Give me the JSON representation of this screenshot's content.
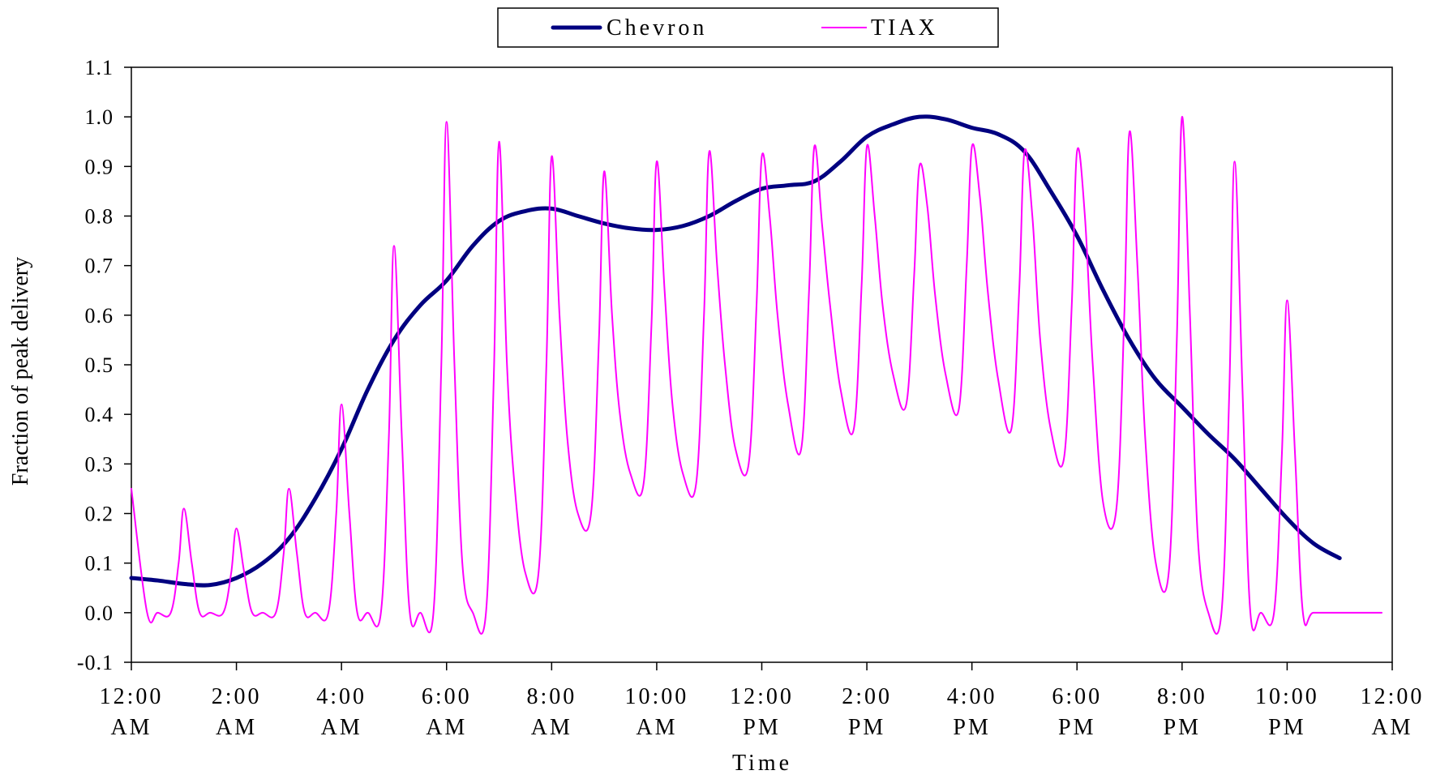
{
  "chart_data": {
    "type": "line",
    "title": "",
    "xlabel": "Time",
    "ylabel": "Fraction of peak delivery",
    "xlim": [
      0,
      24
    ],
    "ylim": [
      -0.1,
      1.1
    ],
    "y_ticks": [
      -0.1,
      0.0,
      0.1,
      0.2,
      0.3,
      0.4,
      0.5,
      0.6,
      0.7,
      0.8,
      0.9,
      1.0,
      1.1
    ],
    "y_tick_labels": [
      "-0.1",
      "0.0",
      "0.1",
      "0.2",
      "0.3",
      "0.4",
      "0.5",
      "0.6",
      "0.7",
      "0.8",
      "0.9",
      "1.0",
      "1.1"
    ],
    "x_ticks": [
      0,
      2,
      4,
      6,
      8,
      10,
      12,
      14,
      16,
      18,
      20,
      22,
      24
    ],
    "x_tick_labels": [
      [
        "12:00",
        "AM"
      ],
      [
        "2:00",
        "AM"
      ],
      [
        "4:00",
        "AM"
      ],
      [
        "6:00",
        "AM"
      ],
      [
        "8:00",
        "AM"
      ],
      [
        "10:00",
        "AM"
      ],
      [
        "12:00",
        "PM"
      ],
      [
        "2:00",
        "PM"
      ],
      [
        "4:00",
        "PM"
      ],
      [
        "6:00",
        "PM"
      ],
      [
        "8:00",
        "PM"
      ],
      [
        "10:00",
        "PM"
      ],
      [
        "12:00",
        "AM"
      ]
    ],
    "grid": false,
    "legend": {
      "position": "top-center",
      "entries": [
        {
          "label": "Chevron",
          "color": "#000080"
        },
        {
          "label": "TIAX",
          "color": "#ff00ff"
        }
      ]
    },
    "series": [
      {
        "name": "Chevron",
        "color": "#000080",
        "x": [
          0,
          0.5,
          1,
          1.5,
          2,
          2.5,
          3,
          3.5,
          4,
          4.5,
          5,
          5.5,
          6,
          6.5,
          7,
          7.5,
          8,
          8.5,
          9,
          9.5,
          10,
          10.5,
          11,
          11.5,
          12,
          12.5,
          13,
          13.5,
          14,
          14.5,
          15,
          15.5,
          16,
          16.5,
          17,
          17.5,
          18,
          18.5,
          19,
          19.5,
          20,
          20.5,
          21,
          21.5,
          22,
          22.5,
          23
        ],
        "y": [
          0.07,
          0.065,
          0.058,
          0.056,
          0.07,
          0.1,
          0.15,
          0.23,
          0.33,
          0.45,
          0.55,
          0.62,
          0.67,
          0.74,
          0.79,
          0.81,
          0.815,
          0.8,
          0.785,
          0.775,
          0.772,
          0.78,
          0.8,
          0.83,
          0.855,
          0.862,
          0.87,
          0.91,
          0.96,
          0.985,
          1.0,
          0.995,
          0.978,
          0.965,
          0.93,
          0.85,
          0.76,
          0.65,
          0.55,
          0.47,
          0.415,
          0.36,
          0.31,
          0.25,
          0.19,
          0.14,
          0.11
        ]
      },
      {
        "name": "TIAX",
        "color": "#ff00ff",
        "x": [
          0,
          0.3,
          0.5,
          0.75,
          0.9,
          1.0,
          1.15,
          1.3,
          1.5,
          1.75,
          1.9,
          2.0,
          2.15,
          2.3,
          2.5,
          2.75,
          2.9,
          3.0,
          3.15,
          3.3,
          3.5,
          3.75,
          3.9,
          4.0,
          4.15,
          4.3,
          4.5,
          4.75,
          4.9,
          5.0,
          5.15,
          5.3,
          5.5,
          5.75,
          5.9,
          6.0,
          6.15,
          6.3,
          6.5,
          6.75,
          6.9,
          7.0,
          7.15,
          7.3,
          7.5,
          7.75,
          7.9,
          8.0,
          8.15,
          8.3,
          8.5,
          8.75,
          8.9,
          9.0,
          9.15,
          9.3,
          9.5,
          9.75,
          9.9,
          10.0,
          10.15,
          10.3,
          10.5,
          10.75,
          10.9,
          11.0,
          11.15,
          11.3,
          11.5,
          11.75,
          11.9,
          12.0,
          12.15,
          12.3,
          12.5,
          12.75,
          12.9,
          13.0,
          13.15,
          13.3,
          13.5,
          13.75,
          13.9,
          14.0,
          14.15,
          14.3,
          14.5,
          14.75,
          14.9,
          15.0,
          15.15,
          15.3,
          15.5,
          15.75,
          15.9,
          16.0,
          16.15,
          16.3,
          16.5,
          16.75,
          16.9,
          17.0,
          17.15,
          17.3,
          17.5,
          17.75,
          17.9,
          18.0,
          18.15,
          18.3,
          18.5,
          18.75,
          18.9,
          19.0,
          19.15,
          19.3,
          19.5,
          19.75,
          19.9,
          20.0,
          20.15,
          20.3,
          20.5,
          20.75,
          20.9,
          21.0,
          21.15,
          21.3,
          21.5,
          21.75,
          21.9,
          22.0,
          22.15,
          22.3,
          22.5,
          23.0,
          23.8
        ],
        "y": [
          0.25,
          0.0,
          0.0,
          0.0,
          0.1,
          0.21,
          0.1,
          0.0,
          0.0,
          0.0,
          0.08,
          0.17,
          0.08,
          0.0,
          0.0,
          0.0,
          0.12,
          0.25,
          0.12,
          0.0,
          0.0,
          0.0,
          0.2,
          0.42,
          0.2,
          0.0,
          0.0,
          0.0,
          0.35,
          0.74,
          0.35,
          0.0,
          0.0,
          0.0,
          0.5,
          0.99,
          0.5,
          0.1,
          0.0,
          0.0,
          0.48,
          0.95,
          0.5,
          0.25,
          0.08,
          0.08,
          0.5,
          0.92,
          0.6,
          0.35,
          0.2,
          0.2,
          0.55,
          0.89,
          0.6,
          0.4,
          0.28,
          0.26,
          0.58,
          0.91,
          0.65,
          0.42,
          0.28,
          0.26,
          0.6,
          0.93,
          0.7,
          0.5,
          0.33,
          0.3,
          0.62,
          0.92,
          0.8,
          0.6,
          0.42,
          0.33,
          0.65,
          0.94,
          0.78,
          0.62,
          0.45,
          0.37,
          0.66,
          0.94,
          0.8,
          0.62,
          0.48,
          0.42,
          0.68,
          0.9,
          0.82,
          0.64,
          0.48,
          0.41,
          0.7,
          0.94,
          0.84,
          0.65,
          0.47,
          0.37,
          0.65,
          0.93,
          0.8,
          0.55,
          0.37,
          0.31,
          0.62,
          0.93,
          0.8,
          0.5,
          0.22,
          0.21,
          0.6,
          0.97,
          0.7,
          0.35,
          0.1,
          0.085,
          0.55,
          1.0,
          0.6,
          0.15,
          0.0,
          0.0,
          0.45,
          0.91,
          0.45,
          0.0,
          0.0,
          0.0,
          0.32,
          0.63,
          0.32,
          0.0,
          0.0,
          0.0,
          0.0
        ]
      }
    ]
  }
}
